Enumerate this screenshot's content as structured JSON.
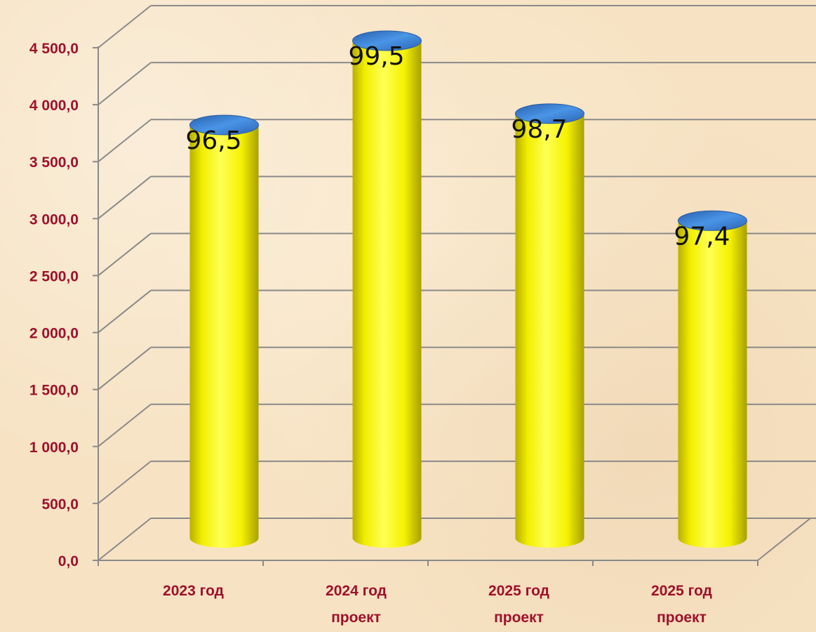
{
  "chart_data": {
    "type": "bar",
    "style": "3d-cylinder",
    "categories": [
      [
        "2023 год"
      ],
      [
        "2024 год",
        "проект"
      ],
      [
        "2025 год",
        "проект"
      ],
      [
        "2025 год",
        "проект"
      ]
    ],
    "values": [
      3760,
      4500,
      3860,
      2920
    ],
    "data_labels": [
      "96,5",
      "99,5",
      "98,7",
      "97,4"
    ],
    "yticks": [
      "0,0",
      "500,0",
      "1 000,0",
      "1 500,0",
      "2 000,0",
      "2 500,0",
      "3 000,0",
      "3 500,0",
      "4 000,0",
      "4 500,0"
    ],
    "ylim": [
      0,
      4500
    ],
    "grid": true,
    "title": "",
    "xlabel": "",
    "ylabel": "",
    "colors": {
      "bar": "#ffff00",
      "bar_top": "#3a7fd0",
      "tick_text": "#a0102a",
      "grid": "#8a8a8a"
    }
  }
}
